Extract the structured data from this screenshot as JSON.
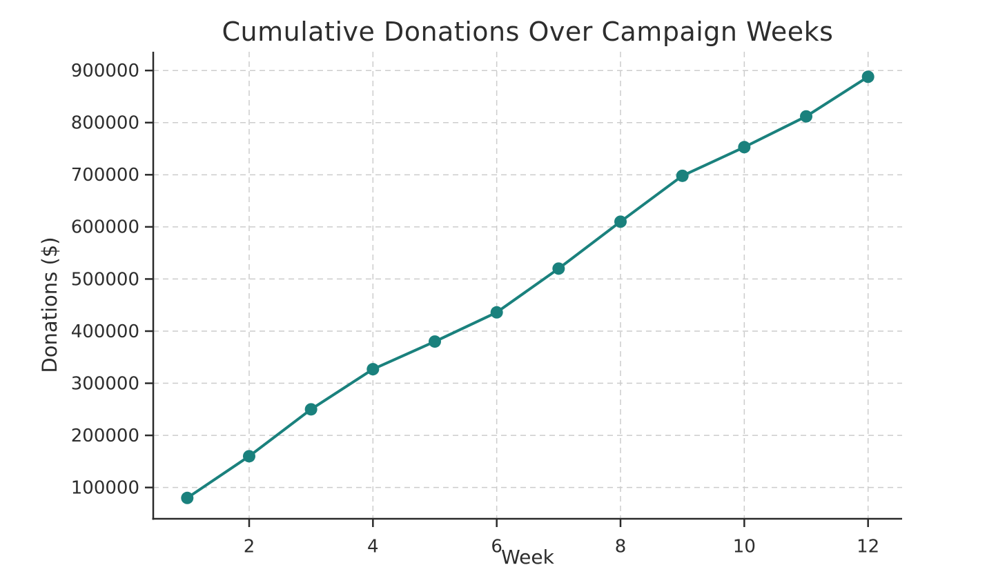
{
  "chart_data": {
    "type": "line",
    "title": "Cumulative Donations Over Campaign Weeks",
    "xlabel": "Week",
    "ylabel": "Donations ($)",
    "series": [
      {
        "name": "Cumulative donations",
        "x": [
          1,
          2,
          3,
          4,
          5,
          6,
          7,
          8,
          9,
          10,
          11,
          12
        ],
        "values": [
          80000,
          160000,
          250000,
          327000,
          380000,
          436000,
          520000,
          610000,
          698000,
          753000,
          812000,
          888000
        ]
      }
    ],
    "xticks": [
      2,
      4,
      6,
      8,
      10,
      12
    ],
    "yticks": [
      100000,
      200000,
      300000,
      400000,
      500000,
      600000,
      700000,
      800000,
      900000
    ],
    "xlim": [
      0.45,
      12.55
    ],
    "ylim": [
      40000,
      936000
    ],
    "grid": true,
    "grid_style": "dashed",
    "legend": "none",
    "colors": {
      "line": "#1a817d",
      "marker": "#1a817d",
      "grid": "#cccccc",
      "spine": "#2a2a2a",
      "text": "#2d2d2d",
      "background": "#ffffff"
    }
  }
}
